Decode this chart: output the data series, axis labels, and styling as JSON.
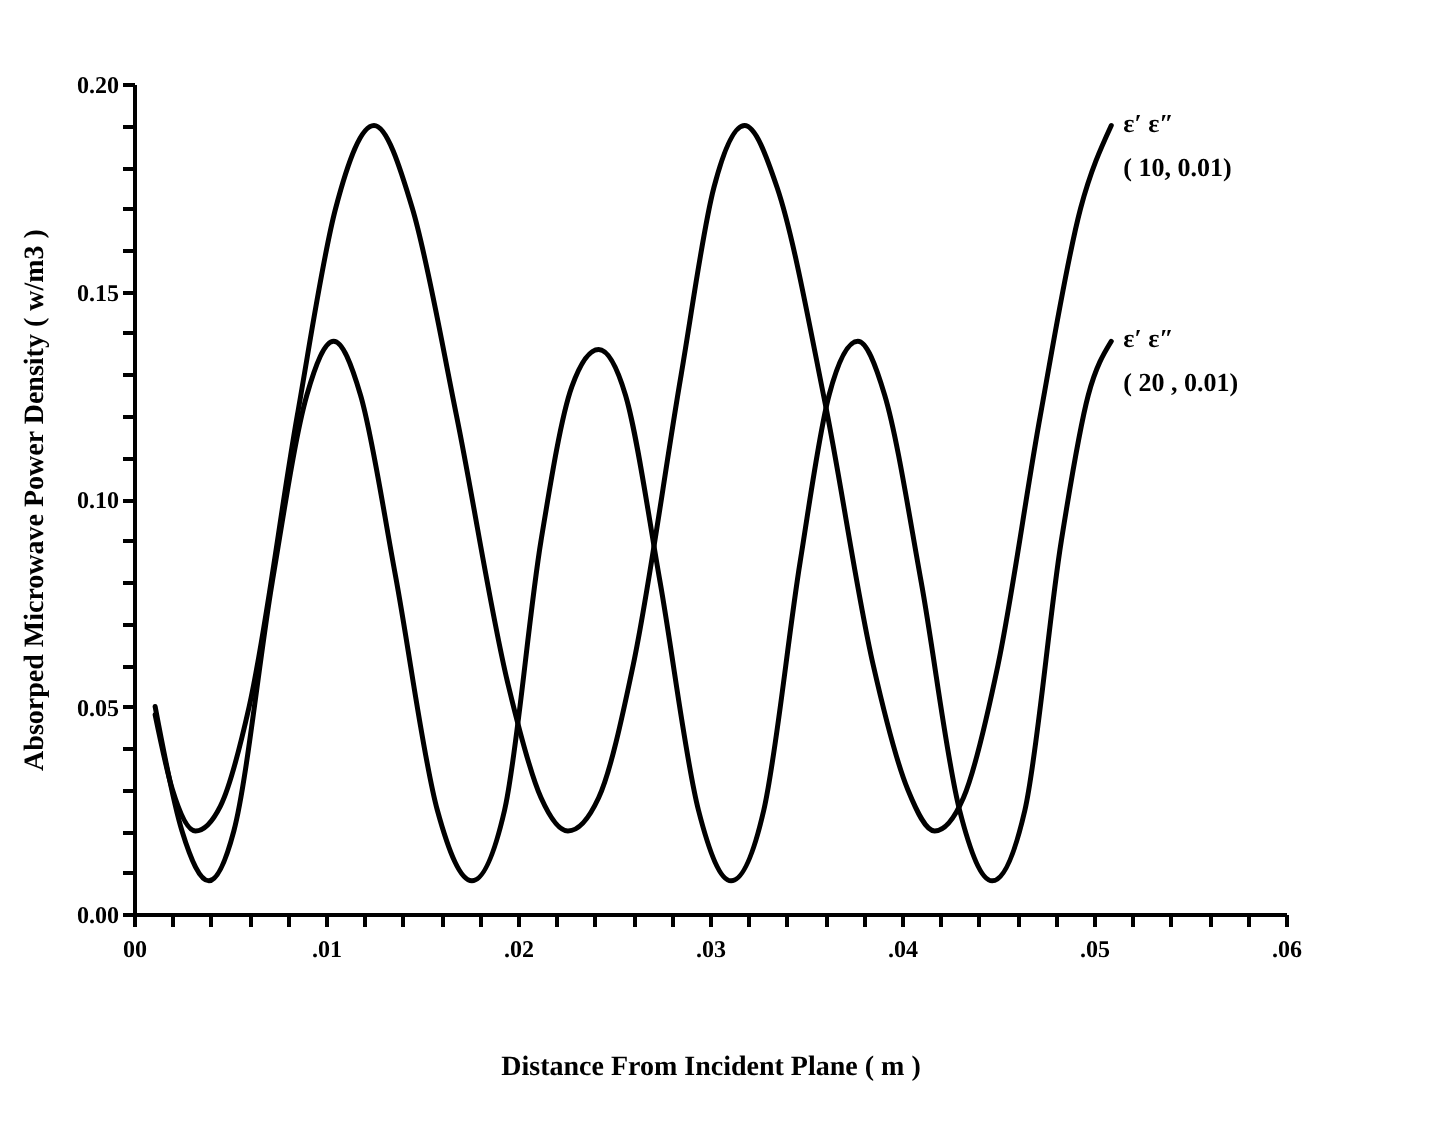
{
  "chart_data": {
    "type": "line",
    "xlabel": "Distance From Incident Plane ( m )",
    "ylabel": "Absorped Microwave Power Density ( w/m3 )",
    "xlim": [
      0,
      0.06
    ],
    "ylim": [
      0,
      0.2
    ],
    "xticks": [
      {
        "value": 0,
        "label": "00"
      },
      {
        "value": 0.002,
        "label": null
      },
      {
        "value": 0.004,
        "label": null
      },
      {
        "value": 0.006,
        "label": null
      },
      {
        "value": 0.008,
        "label": null
      },
      {
        "value": 0.01,
        "label": ".01"
      },
      {
        "value": 0.012,
        "label": null
      },
      {
        "value": 0.014,
        "label": null
      },
      {
        "value": 0.016,
        "label": null
      },
      {
        "value": 0.018,
        "label": null
      },
      {
        "value": 0.02,
        "label": ".02"
      },
      {
        "value": 0.022,
        "label": null
      },
      {
        "value": 0.024,
        "label": null
      },
      {
        "value": 0.026,
        "label": null
      },
      {
        "value": 0.028,
        "label": null
      },
      {
        "value": 0.03,
        "label": ".03"
      },
      {
        "value": 0.032,
        "label": null
      },
      {
        "value": 0.034,
        "label": null
      },
      {
        "value": 0.036,
        "label": null
      },
      {
        "value": 0.038,
        "label": null
      },
      {
        "value": 0.04,
        "label": ".04"
      },
      {
        "value": 0.042,
        "label": null
      },
      {
        "value": 0.044,
        "label": null
      },
      {
        "value": 0.046,
        "label": null
      },
      {
        "value": 0.048,
        "label": null
      },
      {
        "value": 0.05,
        "label": ".05"
      },
      {
        "value": 0.052,
        "label": null
      },
      {
        "value": 0.054,
        "label": null
      },
      {
        "value": 0.056,
        "label": null
      },
      {
        "value": 0.058,
        "label": null
      },
      {
        "value": 0.06,
        "label": ".06"
      }
    ],
    "yticks": [
      {
        "value": 0,
        "label": "0.00"
      },
      {
        "value": 0.01,
        "label": null
      },
      {
        "value": 0.02,
        "label": null
      },
      {
        "value": 0.03,
        "label": null
      },
      {
        "value": 0.04,
        "label": null
      },
      {
        "value": 0.05,
        "label": "0.05"
      },
      {
        "value": 0.06,
        "label": null
      },
      {
        "value": 0.07,
        "label": null
      },
      {
        "value": 0.08,
        "label": null
      },
      {
        "value": 0.09,
        "label": null
      },
      {
        "value": 0.1,
        "label": "0.10"
      },
      {
        "value": 0.11,
        "label": null
      },
      {
        "value": 0.12,
        "label": null
      },
      {
        "value": 0.13,
        "label": null
      },
      {
        "value": 0.14,
        "label": null
      },
      {
        "value": 0.15,
        "label": "0.15"
      },
      {
        "value": 0.16,
        "label": null
      },
      {
        "value": 0.17,
        "label": null
      },
      {
        "value": 0.18,
        "label": null
      },
      {
        "value": 0.19,
        "label": null
      },
      {
        "value": 0.2,
        "label": "0.20"
      }
    ],
    "grid": false,
    "legend": false,
    "marker": "none",
    "line_style": "solid",
    "series": [
      {
        "name": "ε′   ε″\n( 10, 0.01)",
        "color": "#000000",
        "x": [
          0.0011,
          0.002,
          0.0032,
          0.0045,
          0.006,
          0.0085,
          0.0105,
          0.0125,
          0.0145,
          0.0168,
          0.0195,
          0.0212,
          0.0226,
          0.0242,
          0.026,
          0.0285,
          0.0302,
          0.0318,
          0.0335,
          0.036,
          0.0385,
          0.0403,
          0.0417,
          0.0432,
          0.045,
          0.0472,
          0.0493,
          0.0509
        ],
        "values": [
          0.048,
          0.03,
          0.02,
          0.026,
          0.05,
          0.12,
          0.17,
          0.19,
          0.17,
          0.12,
          0.055,
          0.028,
          0.02,
          0.028,
          0.06,
          0.13,
          0.175,
          0.19,
          0.175,
          0.123,
          0.06,
          0.03,
          0.02,
          0.028,
          0.06,
          0.12,
          0.17,
          0.19
        ]
      },
      {
        "name": "ε′   ε″\n( 20 , 0.01)",
        "color": "#000000",
        "x": [
          0.0011,
          0.0025,
          0.0039,
          0.0052,
          0.0072,
          0.009,
          0.0104,
          0.0118,
          0.0136,
          0.0158,
          0.0176,
          0.0193,
          0.0212,
          0.0228,
          0.0242,
          0.0256,
          0.0274,
          0.0294,
          0.0311,
          0.0328,
          0.0347,
          0.0362,
          0.0377,
          0.0391,
          0.041,
          0.043,
          0.0447,
          0.0464,
          0.0483,
          0.0497,
          0.0509
        ],
        "values": [
          0.05,
          0.02,
          0.008,
          0.02,
          0.08,
          0.125,
          0.138,
          0.125,
          0.082,
          0.025,
          0.008,
          0.025,
          0.09,
          0.127,
          0.136,
          0.125,
          0.08,
          0.025,
          0.008,
          0.025,
          0.085,
          0.125,
          0.138,
          0.125,
          0.08,
          0.025,
          0.008,
          0.025,
          0.09,
          0.125,
          0.138
        ]
      }
    ]
  }
}
